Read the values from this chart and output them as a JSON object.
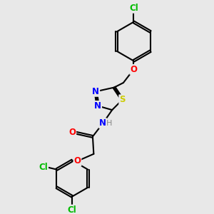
{
  "bg_color": "#e8e8e8",
  "bond_color": "#000000",
  "bond_width": 1.5,
  "atom_colors": {
    "N": "#0000ff",
    "O": "#ff0000",
    "S": "#cccc00",
    "Cl": "#00bb00",
    "H": "#888888"
  },
  "font_size": 8.5
}
